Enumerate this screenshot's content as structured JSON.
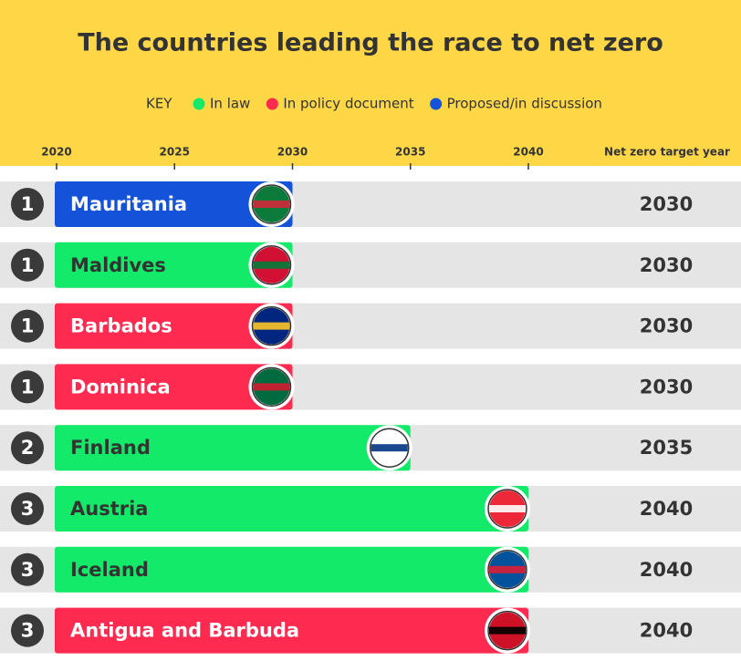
{
  "chart_data": {
    "type": "bar",
    "title": "The countries leading the race to net zero",
    "legend_title": "KEY",
    "value_column_title": "Net zero target year",
    "categories": [
      "Mauritania",
      "Maldives",
      "Barbados",
      "Dominica",
      "Finland",
      "Austria",
      "Iceland",
      "Antigua and Barbuda"
    ],
    "ranks": [
      1,
      1,
      1,
      1,
      2,
      3,
      3,
      3
    ],
    "series": [
      {
        "name": "In law",
        "color": "#13ea6a",
        "values": [
          null,
          2030,
          null,
          null,
          2035,
          2040,
          2040,
          null
        ]
      },
      {
        "name": "In policy document",
        "color": "#ff2a4f",
        "values": [
          null,
          null,
          2030,
          2030,
          null,
          null,
          null,
          2040
        ]
      },
      {
        "name": "Proposed/in discussion",
        "color": "#1453d9",
        "values": [
          2030,
          null,
          null,
          null,
          null,
          null,
          null,
          null
        ]
      }
    ],
    "xlim": [
      2020,
      2040
    ],
    "xticks": [
      2020,
      2025,
      2030,
      2035,
      2040
    ]
  }
}
